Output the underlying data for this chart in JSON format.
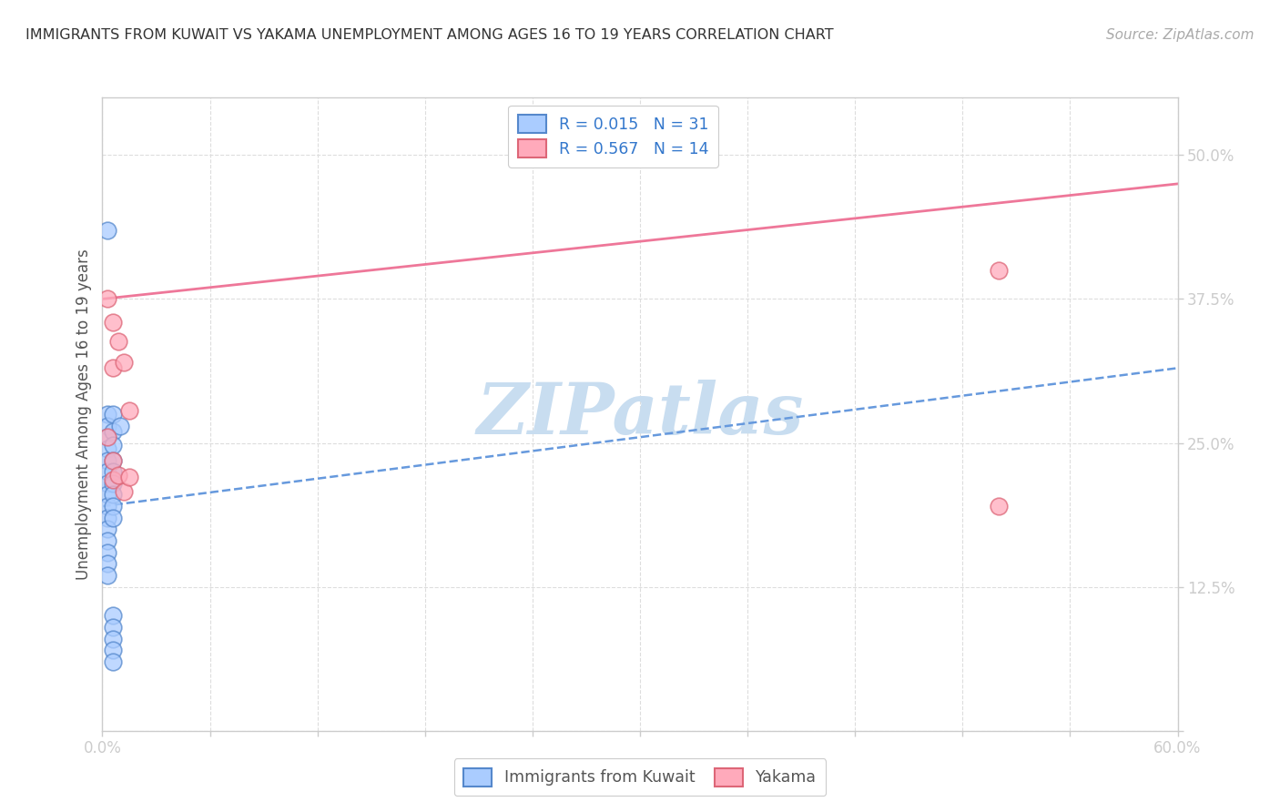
{
  "title": "IMMIGRANTS FROM KUWAIT VS YAKAMA UNEMPLOYMENT AMONG AGES 16 TO 19 YEARS CORRELATION CHART",
  "source": "Source: ZipAtlas.com",
  "ylabel": "Unemployment Among Ages 16 to 19 years",
  "xlim": [
    0.0,
    0.6
  ],
  "ylim": [
    0.0,
    0.55
  ],
  "yticks": [
    0.0,
    0.125,
    0.25,
    0.375,
    0.5
  ],
  "ytick_labels": [
    "",
    "12.5%",
    "25.0%",
    "37.5%",
    "50.0%"
  ],
  "xticks": [
    0.0,
    0.06,
    0.12,
    0.18,
    0.24,
    0.3,
    0.36,
    0.42,
    0.48,
    0.54,
    0.6
  ],
  "xtick_labels": [
    "0.0%",
    "",
    "",
    "",
    "",
    "",
    "",
    "",
    "",
    "",
    "60.0%"
  ],
  "legend_entries": [
    {
      "label": "R = 0.015   N = 31"
    },
    {
      "label": "R = 0.567   N = 14"
    }
  ],
  "bottom_legend": [
    {
      "label": "Immigrants from Kuwait"
    },
    {
      "label": "Yakama"
    }
  ],
  "kuwait_points": [
    [
      0.003,
      0.435
    ],
    [
      0.003,
      0.275
    ],
    [
      0.003,
      0.265
    ],
    [
      0.003,
      0.255
    ],
    [
      0.003,
      0.245
    ],
    [
      0.003,
      0.235
    ],
    [
      0.003,
      0.225
    ],
    [
      0.003,
      0.215
    ],
    [
      0.003,
      0.205
    ],
    [
      0.003,
      0.195
    ],
    [
      0.003,
      0.185
    ],
    [
      0.003,
      0.175
    ],
    [
      0.003,
      0.165
    ],
    [
      0.003,
      0.155
    ],
    [
      0.003,
      0.145
    ],
    [
      0.003,
      0.135
    ],
    [
      0.006,
      0.275
    ],
    [
      0.006,
      0.26
    ],
    [
      0.006,
      0.248
    ],
    [
      0.006,
      0.235
    ],
    [
      0.006,
      0.225
    ],
    [
      0.006,
      0.215
    ],
    [
      0.006,
      0.205
    ],
    [
      0.006,
      0.195
    ],
    [
      0.006,
      0.185
    ],
    [
      0.006,
      0.1
    ],
    [
      0.006,
      0.09
    ],
    [
      0.006,
      0.08
    ],
    [
      0.006,
      0.07
    ],
    [
      0.006,
      0.06
    ],
    [
      0.01,
      0.265
    ]
  ],
  "yakama_points": [
    [
      0.003,
      0.375
    ],
    [
      0.003,
      0.255
    ],
    [
      0.006,
      0.355
    ],
    [
      0.006,
      0.315
    ],
    [
      0.006,
      0.235
    ],
    [
      0.006,
      0.218
    ],
    [
      0.009,
      0.338
    ],
    [
      0.009,
      0.222
    ],
    [
      0.012,
      0.32
    ],
    [
      0.012,
      0.208
    ],
    [
      0.015,
      0.278
    ],
    [
      0.015,
      0.22
    ],
    [
      0.5,
      0.4
    ],
    [
      0.5,
      0.195
    ]
  ],
  "kuwait_line_x": [
    0.0,
    0.6
  ],
  "kuwait_line_y": [
    0.195,
    0.315
  ],
  "yakama_line_x": [
    0.0,
    0.6
  ],
  "yakama_line_y": [
    0.375,
    0.475
  ],
  "watermark": "ZIPatlas",
  "watermark_color": "#c8ddf0",
  "title_fontsize": 11.5,
  "source_fontsize": 11,
  "tick_label_fontsize": 12,
  "ylabel_fontsize": 12,
  "legend_fontsize": 12.5,
  "scatter_size": 180,
  "kuwait_face": "#aaccff",
  "kuwait_edge": "#5588cc",
  "yakama_face": "#ffaabb",
  "yakama_edge": "#dd6677",
  "kuwait_line_color": "#6699dd",
  "yakama_line_color": "#ee7799",
  "tick_color": "#3377cc",
  "grid_color": "#dddddd",
  "axis_color": "#cccccc",
  "text_color": "#333333",
  "source_color": "#aaaaaa"
}
